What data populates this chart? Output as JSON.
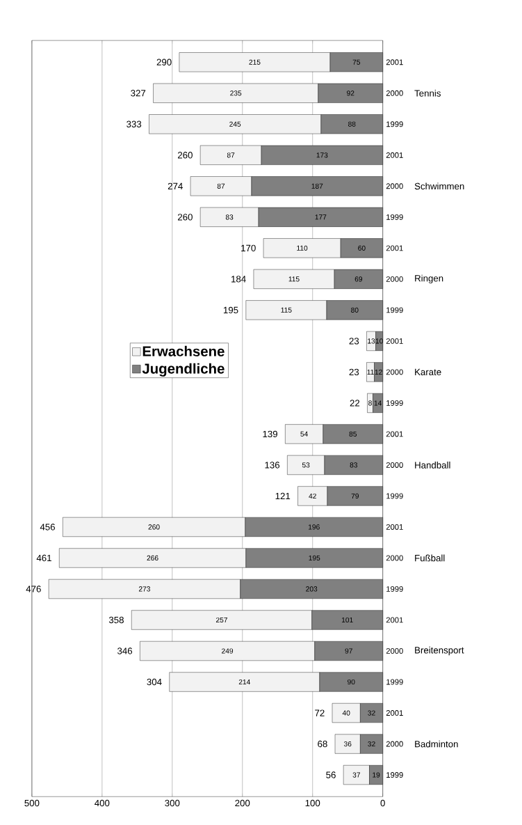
{
  "chart_data": {
    "type": "bar",
    "stacked": true,
    "orientation": "horizontal",
    "categories": [
      "2001",
      "2000",
      "1999",
      "2001",
      "2000",
      "1999",
      "2001",
      "2000",
      "1999",
      "2001",
      "2000",
      "1999",
      "2001",
      "2000",
      "1999",
      "2001",
      "2000",
      "1999",
      "2001",
      "2000",
      "1999",
      "2001",
      "2000",
      "1999"
    ],
    "series": [
      {
        "name": "Jugendliche",
        "color": "#808080",
        "values": [
          75,
          92,
          88,
          173,
          187,
          177,
          60,
          69,
          80,
          10,
          12,
          14,
          85,
          83,
          79,
          196,
          195,
          203,
          101,
          97,
          90,
          32,
          32,
          19
        ]
      },
      {
        "name": "Erwachsene",
        "color": "#f2f2f2",
        "values": [
          215,
          235,
          245,
          87,
          87,
          83,
          110,
          115,
          115,
          13,
          11,
          8,
          54,
          53,
          42,
          260,
          266,
          273,
          257,
          249,
          214,
          40,
          36,
          37
        ]
      }
    ],
    "totals": [
      "290",
      "327",
      "333",
      "260",
      "274",
      "260",
      "170",
      "184",
      "195",
      "23",
      "23",
      "22",
      "139",
      "136",
      "121",
      "456",
      "461",
      "476",
      "358",
      "346",
      "304",
      "72",
      "68",
      "56"
    ],
    "annotations": [
      "Tennis",
      "Schwimmen",
      "Ringen",
      "Karate",
      "Handball",
      "Fußball",
      "Breitensport",
      "Badminton"
    ],
    "xlim": [
      500,
      0
    ],
    "xticks": [
      0,
      100,
      200,
      300,
      400,
      500
    ],
    "grid": "x",
    "legend": "left",
    "data_labels": true
  }
}
